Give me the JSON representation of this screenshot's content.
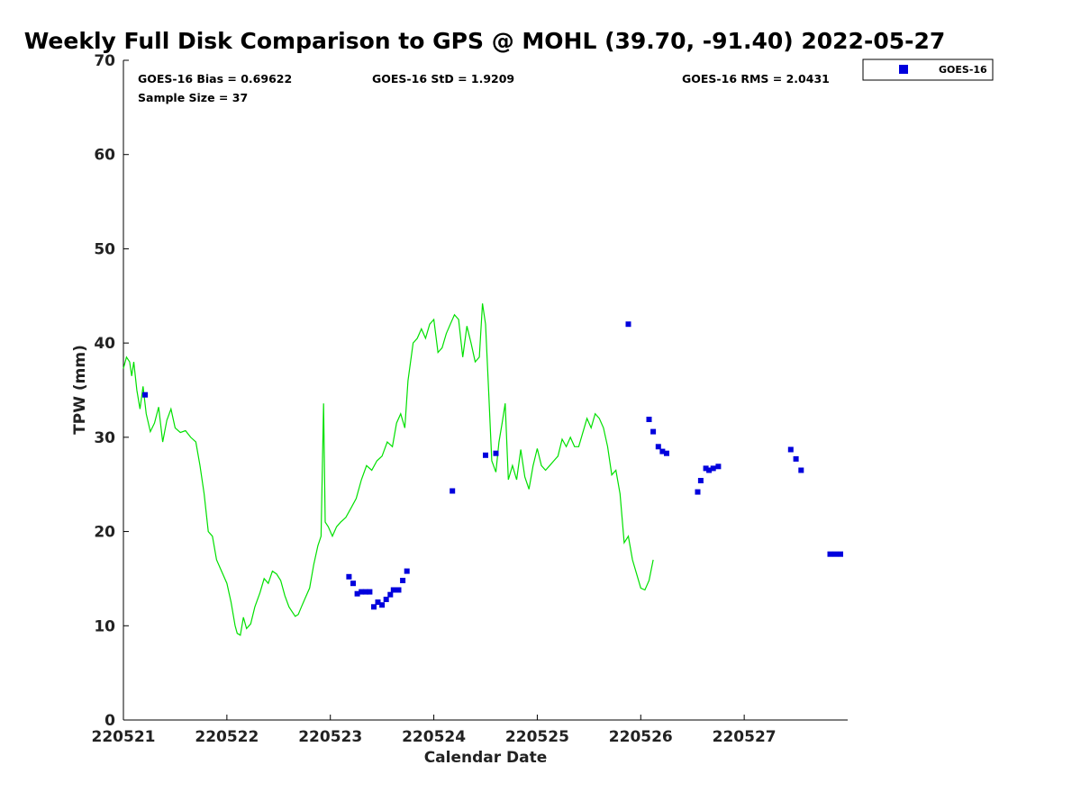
{
  "chart_data": {
    "type": "line",
    "title": "Weekly Full Disk Comparison to GPS @ MOHL (39.70, -91.40) 2022-05-27",
    "xlabel": "Calendar Date",
    "ylabel": "TPW (mm)",
    "xlim": [
      220521,
      220528
    ],
    "ylim": [
      0,
      70
    ],
    "xticks": [
      220521,
      220522,
      220523,
      220524,
      220525,
      220526,
      220527
    ],
    "xtick_labels": [
      "220521",
      "220522",
      "220523",
      "220524",
      "220525",
      "220526",
      "220527"
    ],
    "yticks": [
      0,
      10,
      20,
      30,
      40,
      50,
      60,
      70
    ],
    "ytick_labels": [
      "0",
      "10",
      "20",
      "30",
      "40",
      "50",
      "60",
      "70"
    ],
    "grid": false,
    "legend_position": "top-right outside",
    "stats": {
      "bias": "GOES-16 Bias = 0.69622",
      "std": "GOES-16 StD = 1.9209",
      "rms": "GOES-16 RMS = 2.0431",
      "sample": "Sample Size = 37"
    },
    "colors": {
      "gps": "#00e000",
      "goes": "#0000dd"
    },
    "series": [
      {
        "kind": "line",
        "color": "#00e000",
        "points": [
          [
            220521.0,
            37.3
          ],
          [
            220521.03,
            38.5
          ],
          [
            220521.06,
            38.0
          ],
          [
            220521.08,
            36.5
          ],
          [
            220521.1,
            38.0
          ],
          [
            220521.13,
            35.0
          ],
          [
            220521.16,
            33.0
          ],
          [
            220521.19,
            35.4
          ],
          [
            220521.22,
            32.5
          ],
          [
            220521.26,
            30.6
          ],
          [
            220521.3,
            31.5
          ],
          [
            220521.34,
            33.2
          ],
          [
            220521.38,
            29.5
          ],
          [
            220521.42,
            31.8
          ],
          [
            220521.46,
            33.0
          ],
          [
            220521.5,
            31.0
          ],
          [
            220521.55,
            30.5
          ],
          [
            220521.6,
            30.7
          ],
          [
            220521.65,
            30.0
          ],
          [
            220521.7,
            29.5
          ],
          [
            220521.74,
            27.0
          ],
          [
            220521.78,
            24.0
          ],
          [
            220521.82,
            20.0
          ],
          [
            220521.86,
            19.5
          ],
          [
            220521.9,
            17.0
          ],
          [
            220521.94,
            16.0
          ],
          [
            220522.0,
            14.5
          ],
          [
            220522.04,
            12.5
          ],
          [
            220522.08,
            10.0
          ],
          [
            220522.1,
            9.2
          ],
          [
            220522.13,
            9.0
          ],
          [
            220522.16,
            10.9
          ],
          [
            220522.19,
            9.7
          ],
          [
            220522.23,
            10.2
          ],
          [
            220522.27,
            12.0
          ],
          [
            220522.32,
            13.5
          ],
          [
            220522.36,
            15.0
          ],
          [
            220522.4,
            14.5
          ],
          [
            220522.44,
            15.8
          ],
          [
            220522.48,
            15.5
          ],
          [
            220522.52,
            14.8
          ],
          [
            220522.56,
            13.2
          ],
          [
            220522.6,
            12.0
          ],
          [
            220522.63,
            11.5
          ],
          [
            220522.66,
            11.0
          ],
          [
            220522.69,
            11.2
          ],
          [
            220522.72,
            12.0
          ],
          [
            220522.76,
            13.0
          ],
          [
            220522.8,
            14.0
          ],
          [
            220522.84,
            16.5
          ],
          [
            220522.88,
            18.5
          ],
          [
            220522.91,
            19.5
          ],
          [
            220522.935,
            33.6
          ],
          [
            220522.95,
            21.0
          ],
          [
            220522.98,
            20.5
          ],
          [
            220523.02,
            19.5
          ],
          [
            220523.06,
            20.5
          ],
          [
            220523.1,
            21.0
          ],
          [
            220523.15,
            21.5
          ],
          [
            220523.2,
            22.5
          ],
          [
            220523.25,
            23.5
          ],
          [
            220523.3,
            25.5
          ],
          [
            220523.35,
            27.0
          ],
          [
            220523.4,
            26.5
          ],
          [
            220523.45,
            27.5
          ],
          [
            220523.5,
            28.0
          ],
          [
            220523.55,
            29.5
          ],
          [
            220523.6,
            29.0
          ],
          [
            220523.64,
            31.5
          ],
          [
            220523.68,
            32.5
          ],
          [
            220523.72,
            31.0
          ],
          [
            220523.75,
            36.0
          ],
          [
            220523.8,
            40.0
          ],
          [
            220523.84,
            40.5
          ],
          [
            220523.88,
            41.5
          ],
          [
            220523.92,
            40.5
          ],
          [
            220523.96,
            42.0
          ],
          [
            220524.0,
            42.5
          ],
          [
            220524.04,
            39.0
          ],
          [
            220524.08,
            39.5
          ],
          [
            220524.12,
            41.0
          ],
          [
            220524.16,
            42.0
          ],
          [
            220524.2,
            43.0
          ],
          [
            220524.24,
            42.5
          ],
          [
            220524.28,
            38.5
          ],
          [
            220524.32,
            41.8
          ],
          [
            220524.36,
            40.0
          ],
          [
            220524.4,
            38.0
          ],
          [
            220524.44,
            38.5
          ],
          [
            220524.47,
            44.2
          ],
          [
            220524.5,
            42.0
          ],
          [
            220524.53,
            35.0
          ],
          [
            220524.56,
            27.5
          ],
          [
            220524.6,
            26.3
          ],
          [
            220524.63,
            29.5
          ],
          [
            220524.66,
            31.5
          ],
          [
            220524.69,
            33.6
          ],
          [
            220524.72,
            25.5
          ],
          [
            220524.76,
            27.0
          ],
          [
            220524.8,
            25.5
          ],
          [
            220524.84,
            28.7
          ],
          [
            220524.88,
            25.8
          ],
          [
            220524.92,
            24.5
          ],
          [
            220524.96,
            27.0
          ],
          [
            220525.0,
            28.8
          ],
          [
            220525.04,
            27.0
          ],
          [
            220525.08,
            26.5
          ],
          [
            220525.12,
            27.0
          ],
          [
            220525.16,
            27.5
          ],
          [
            220525.2,
            28.0
          ],
          [
            220525.24,
            29.8
          ],
          [
            220525.28,
            29.0
          ],
          [
            220525.32,
            30.0
          ],
          [
            220525.36,
            29.0
          ],
          [
            220525.4,
            29.0
          ],
          [
            220525.44,
            30.5
          ],
          [
            220525.48,
            32.0
          ],
          [
            220525.52,
            31.0
          ],
          [
            220525.56,
            32.5
          ],
          [
            220525.6,
            32.0
          ],
          [
            220525.64,
            31.0
          ],
          [
            220525.68,
            29.0
          ],
          [
            220525.72,
            26.0
          ],
          [
            220525.76,
            26.5
          ],
          [
            220525.8,
            24.0
          ],
          [
            220525.84,
            18.8
          ],
          [
            220525.88,
            19.5
          ],
          [
            220525.92,
            17.0
          ],
          [
            220525.96,
            15.5
          ],
          [
            220526.0,
            14.0
          ],
          [
            220526.04,
            13.8
          ],
          [
            220526.08,
            14.8
          ],
          [
            220526.12,
            17.0
          ]
        ]
      },
      {
        "kind": "scatter",
        "name": "GOES-16",
        "color": "#0000dd",
        "points": [
          [
            220521.21,
            34.5
          ],
          [
            220523.18,
            15.2
          ],
          [
            220523.22,
            14.5
          ],
          [
            220523.26,
            13.4
          ],
          [
            220523.3,
            13.6
          ],
          [
            220523.34,
            13.6
          ],
          [
            220523.38,
            13.6
          ],
          [
            220523.42,
            12.0
          ],
          [
            220523.46,
            12.5
          ],
          [
            220523.5,
            12.2
          ],
          [
            220523.54,
            12.8
          ],
          [
            220523.58,
            13.3
          ],
          [
            220523.61,
            13.8
          ],
          [
            220523.66,
            13.8
          ],
          [
            220523.7,
            14.8
          ],
          [
            220523.74,
            15.8
          ],
          [
            220524.18,
            24.3
          ],
          [
            220524.5,
            28.1
          ],
          [
            220524.6,
            28.3
          ],
          [
            220525.88,
            42.0
          ],
          [
            220526.08,
            31.9
          ],
          [
            220526.12,
            30.6
          ],
          [
            220526.17,
            29.0
          ],
          [
            220526.21,
            28.5
          ],
          [
            220526.25,
            28.3
          ],
          [
            220526.55,
            24.2
          ],
          [
            220526.58,
            25.4
          ],
          [
            220526.63,
            26.7
          ],
          [
            220526.66,
            26.5
          ],
          [
            220526.7,
            26.7
          ],
          [
            220526.75,
            26.9
          ],
          [
            220527.45,
            28.7
          ],
          [
            220527.5,
            27.7
          ],
          [
            220527.55,
            26.5
          ],
          [
            220527.83,
            17.6
          ],
          [
            220527.88,
            17.6
          ],
          [
            220527.93,
            17.6
          ]
        ]
      }
    ]
  }
}
